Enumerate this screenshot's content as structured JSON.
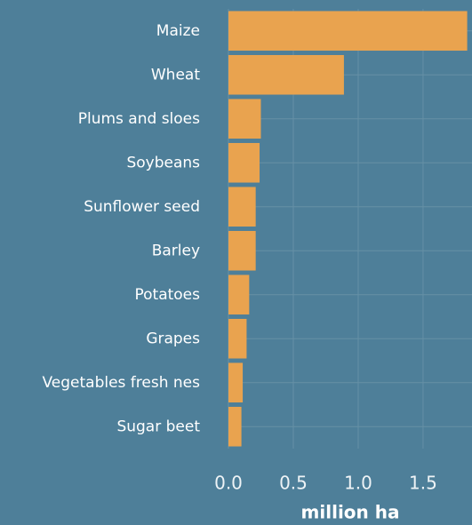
{
  "chart_data": {
    "type": "bar",
    "orientation": "horizontal",
    "categories": [
      "Maize",
      "Wheat",
      "Plums and sloes",
      "Soybeans",
      "Sunflower seed",
      "Barley",
      "Potatoes",
      "Grapes",
      "Vegetables fresh nes",
      "Sugar beet"
    ],
    "values": [
      1.84,
      0.89,
      0.25,
      0.24,
      0.21,
      0.21,
      0.16,
      0.14,
      0.11,
      0.1
    ],
    "color": "#e9a34f",
    "xlabel": "million ha",
    "xlim": [
      0,
      1.877
    ],
    "xticks": [
      {
        "value": 0,
        "label": "0.0"
      },
      0.5,
      {
        "value": 1,
        "label": "1.0"
      },
      1.5
    ],
    "grid": true
  }
}
